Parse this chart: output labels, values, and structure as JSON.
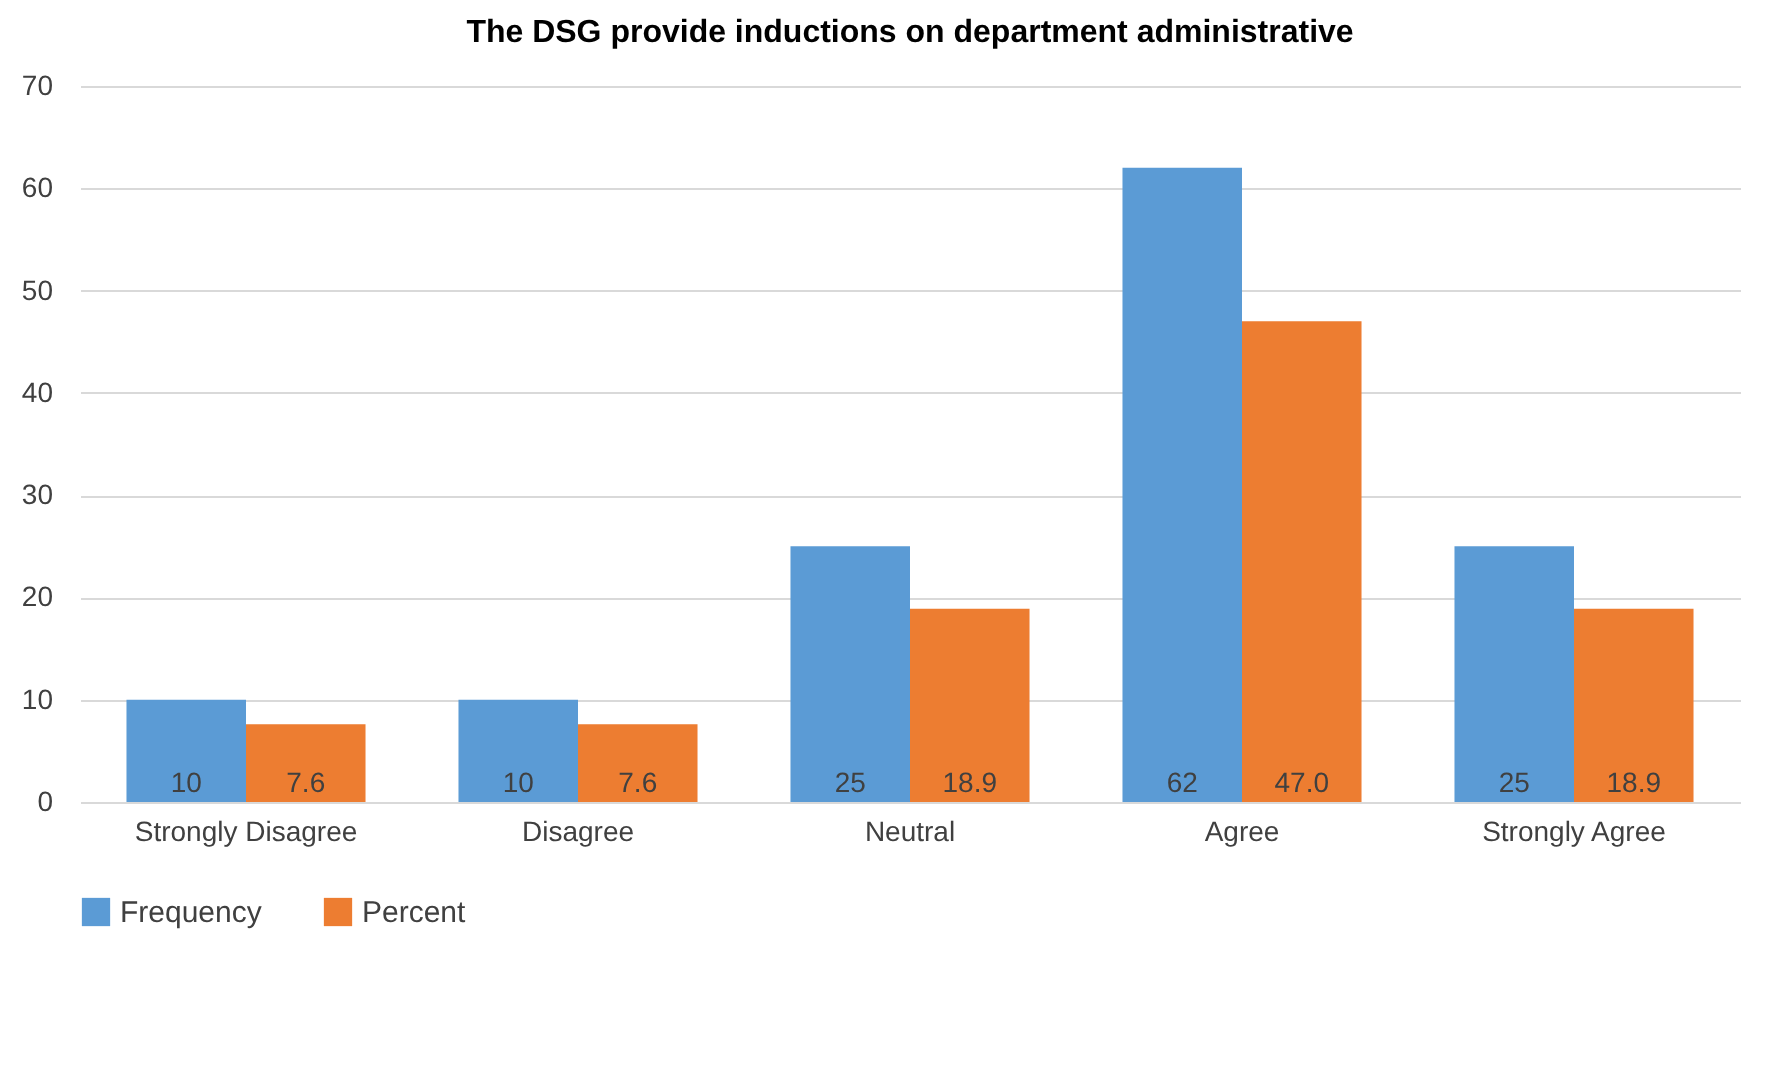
{
  "chart_data": {
    "type": "bar",
    "title": "The DSG provide inductions on department administrative",
    "categories": [
      "Strongly Disagree",
      "Disagree",
      "Neutral",
      "Agree",
      "Strongly Agree"
    ],
    "series": [
      {
        "name": "Frequency",
        "color": "#5b9bd5",
        "values": [
          10,
          10,
          25,
          62,
          25
        ],
        "value_labels": [
          "10",
          "10",
          "25",
          "62",
          "25"
        ]
      },
      {
        "name": "Percent",
        "color": "#ed7d31",
        "values": [
          7.6,
          7.6,
          18.9,
          47.0,
          18.9
        ],
        "value_labels": [
          "7.6",
          "7.6",
          "18.9",
          "47.0",
          "18.9"
        ]
      }
    ],
    "ylim": [
      0,
      70
    ],
    "yticks": [
      0,
      10,
      20,
      30,
      40,
      50,
      60,
      70
    ],
    "grid": "y",
    "legend": "bottom"
  }
}
